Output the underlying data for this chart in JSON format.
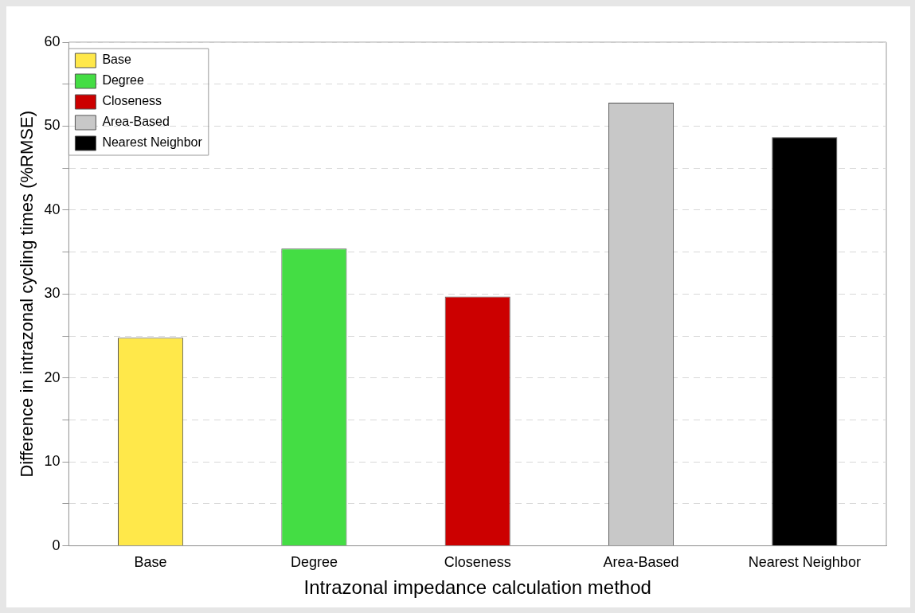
{
  "chart_data": {
    "type": "bar",
    "xlabel": "Intrazonal impedance calculation method",
    "ylabel": "Difference in intrazonal cycling times (%RMSE)",
    "categories": [
      "Base",
      "Degree",
      "Closeness",
      "Area-Based",
      "Nearest Neighbor"
    ],
    "series": [
      {
        "name": "Base",
        "color": "#ffe84a",
        "values": [
          24.8,
          null,
          null,
          null,
          null
        ]
      },
      {
        "name": "Degree",
        "color": "#44dd44",
        "values": [
          null,
          35.4,
          null,
          null,
          null
        ]
      },
      {
        "name": "Closeness",
        "color": "#cc0000",
        "values": [
          null,
          null,
          29.7,
          null,
          null
        ]
      },
      {
        "name": "Area-Based",
        "color": "#c8c8c8",
        "values": [
          null,
          null,
          null,
          52.8,
          null
        ]
      },
      {
        "name": "Nearest Neighbor",
        "color": "#000000",
        "values": [
          null,
          null,
          null,
          null,
          48.7
        ]
      }
    ],
    "ylim": [
      0,
      60
    ],
    "yticks": [
      0,
      {
        "value": 5,
        "label": null
      },
      10,
      {
        "value": 15,
        "label": null
      },
      20,
      {
        "value": 25,
        "label": null
      },
      30,
      {
        "value": 35,
        "label": null
      },
      40,
      {
        "value": 45,
        "label": null
      },
      50,
      {
        "value": 55,
        "label": null
      },
      60
    ],
    "grid": "y",
    "legend": "top left"
  }
}
